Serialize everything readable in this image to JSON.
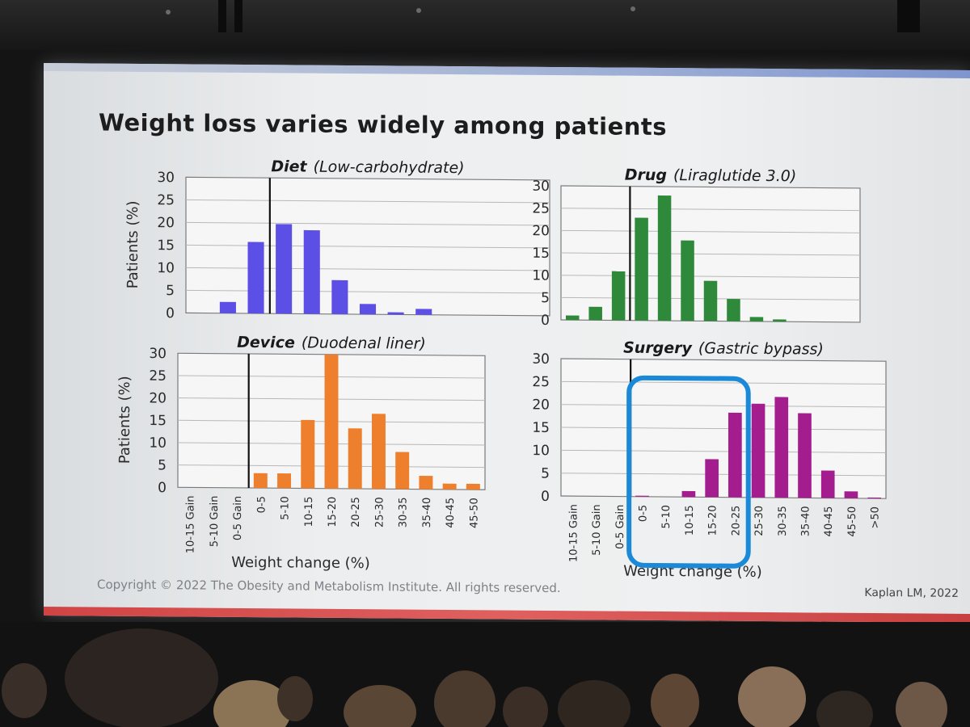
{
  "slide": {
    "title": "Weight loss varies widely among patients",
    "copyright": "Copyright © 2022 The Obesity and Metabolism Institute.  All rights reserved.",
    "citation": "Kaplan LM, 2022"
  },
  "colors": {
    "diet": "#5b4fe6",
    "drug": "#2e8a3a",
    "device": "#ee7f2d",
    "surgery": "#a31d8e",
    "highlight": "#1a8ad8"
  },
  "chart_data": [
    {
      "type": "bar",
      "name": "diet",
      "title_bold": "Diet",
      "title_italic": "(Low-carbohydrate)",
      "ylabel": "Patients (%)",
      "xlabel": "",
      "ylim": [
        0,
        30
      ],
      "yticks": [
        0,
        5,
        10,
        15,
        20,
        25,
        30
      ],
      "baseline_after_index": 2,
      "categories": [
        "10-15 Gain",
        "5-10 Gain",
        "0-5 Gain",
        "0-5",
        "5-10",
        "10-15",
        "15-20",
        "20-25",
        "25-30",
        "30-35",
        "35-40",
        "40-45",
        "45-50"
      ],
      "values": [
        0,
        2.5,
        15.8,
        19.8,
        18.5,
        7.5,
        2.3,
        0.5,
        1.3,
        0,
        0,
        0,
        0
      ],
      "show_category_labels": false
    },
    {
      "type": "bar",
      "name": "drug",
      "title_bold": "Drug",
      "title_italic": "(Liraglutide 3.0)",
      "ylabel": "",
      "xlabel": "",
      "ylim": [
        0,
        30
      ],
      "yticks": [
        0,
        5,
        10,
        15,
        20,
        25,
        30
      ],
      "baseline_after_index": 2,
      "categories": [
        "10-15 Gain",
        "5-10 Gain",
        "0-5 Gain",
        "0-5",
        "5-10",
        "10-15",
        "15-20",
        "20-25",
        "25-30",
        "30-35",
        "35-40",
        "40-45",
        "45-50"
      ],
      "values": [
        1,
        3,
        11,
        23,
        28,
        18,
        9,
        5,
        1,
        0.5,
        0,
        0,
        0
      ],
      "show_category_labels": false
    },
    {
      "type": "bar",
      "name": "device",
      "title_bold": "Device",
      "title_italic": "(Duodenal liner)",
      "ylabel": "Patients (%)",
      "xlabel": "Weight change (%)",
      "ylim": [
        0,
        30
      ],
      "yticks": [
        0,
        5,
        10,
        15,
        20,
        25,
        30
      ],
      "baseline_after_index": 2,
      "categories": [
        "10-15 Gain",
        "5-10 Gain",
        "0-5 Gain",
        "0-5",
        "5-10",
        "10-15",
        "15-20",
        "20-25",
        "25-30",
        "30-35",
        "35-40",
        "40-45",
        "45-50"
      ],
      "values": [
        0,
        0,
        0,
        3.3,
        3.3,
        15.3,
        30,
        13.5,
        16.8,
        8.3,
        3,
        1.3,
        1.3
      ],
      "show_category_labels": true
    },
    {
      "type": "bar",
      "name": "surgery",
      "title_bold": "Surgery",
      "title_italic": "(Gastric bypass)",
      "ylabel": "",
      "xlabel": "Weight change (%)",
      "ylim": [
        0,
        30
      ],
      "yticks": [
        0,
        5,
        10,
        15,
        20,
        25,
        30
      ],
      "baseline_after_index": 2,
      "categories": [
        "10-15 Gain",
        "5-10 Gain",
        "0-5 Gain",
        "0-5",
        "5-10",
        "10-15",
        "15-20",
        "20-25",
        "25-30",
        "30-35",
        "35-40",
        "40-45",
        "45-50",
        ">50"
      ],
      "values": [
        0,
        0,
        0,
        0.2,
        0,
        1.3,
        8.3,
        18.5,
        20.5,
        22,
        18.5,
        6,
        1.5,
        0.2
      ],
      "show_category_labels": true,
      "highlight_range": [
        "0-5",
        "20-25"
      ]
    }
  ]
}
